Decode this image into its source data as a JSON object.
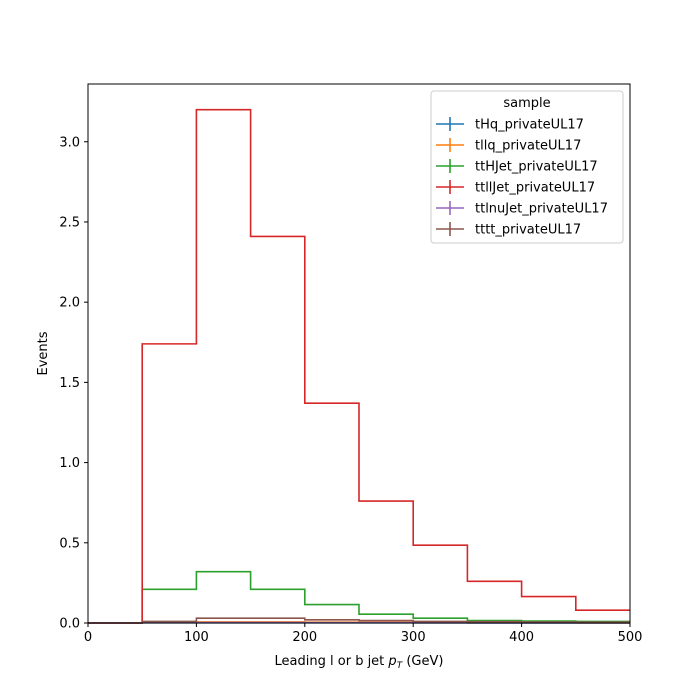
{
  "chart_data": {
    "type": "step",
    "xlabel_main": "Leading l or b jet ",
    "xlabel_pt": "p",
    "xlabel_sub": "T",
    "xlabel_unit": " (GeV)",
    "ylabel": "Events",
    "xlim": [
      0,
      500
    ],
    "ylim": [
      0,
      3.36
    ],
    "xticks": [
      0,
      100,
      200,
      300,
      400,
      500
    ],
    "yticks": [
      0.0,
      0.5,
      1.0,
      1.5,
      2.0,
      2.5,
      3.0
    ],
    "bin_edges": [
      0,
      50,
      100,
      150,
      200,
      250,
      300,
      350,
      400,
      450,
      500
    ],
    "legend_title": "sample",
    "legend_position": "top-right",
    "series": [
      {
        "name": "tHq_privateUL17",
        "color": "#1f77b4",
        "values": [
          0,
          0.001,
          0.001,
          0.001,
          0.001,
          0.001,
          0.001,
          0.0005,
          0.0005,
          0.0005
        ]
      },
      {
        "name": "tllq_privateUL17",
        "color": "#ff7f0e",
        "values": [
          0,
          0.005,
          0.007,
          0.007,
          0.005,
          0.004,
          0.003,
          0.002,
          0.002,
          0.001
        ]
      },
      {
        "name": "ttHJet_privateUL17",
        "color": "#2ca02c",
        "values": [
          0,
          0.21,
          0.32,
          0.21,
          0.115,
          0.055,
          0.03,
          0.015,
          0.012,
          0.01
        ]
      },
      {
        "name": "ttllJet_privateUL17",
        "color": "#d62728",
        "values": [
          0,
          1.74,
          3.2,
          2.41,
          1.37,
          0.76,
          0.485,
          0.26,
          0.165,
          0.08
        ]
      },
      {
        "name": "ttlnuJet_privateUL17",
        "color": "#9467bd",
        "values": [
          0,
          0.002,
          0.003,
          0.003,
          0.002,
          0.002,
          0.001,
          0.001,
          0.001,
          0.001
        ]
      },
      {
        "name": "tttt_privateUL17",
        "color": "#8c564b",
        "values": [
          0,
          0.01,
          0.03,
          0.03,
          0.02,
          0.015,
          0.01,
          0.008,
          0.006,
          0.005
        ]
      }
    ]
  }
}
